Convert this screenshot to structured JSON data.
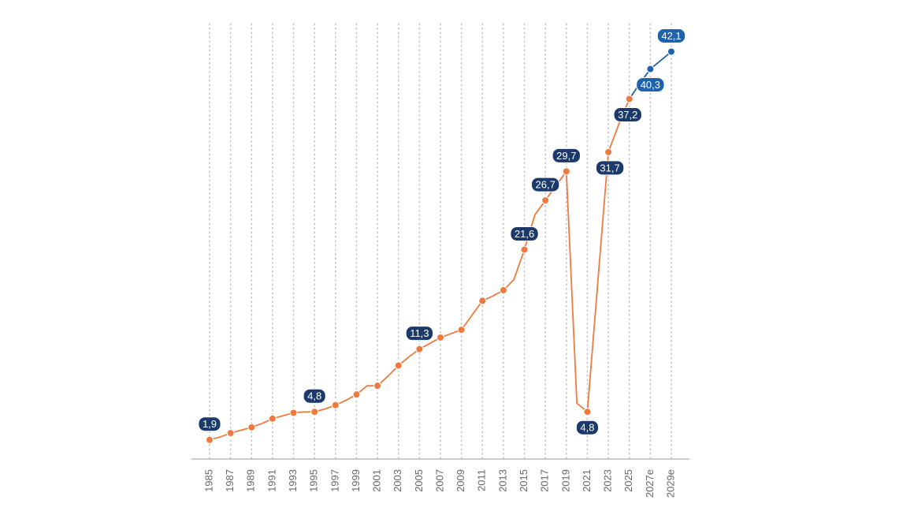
{
  "chart_data": {
    "type": "line",
    "categories": [
      "1985",
      null,
      "1987",
      null,
      "1989",
      null,
      "1991",
      null,
      "1993",
      null,
      "1995",
      null,
      "1997",
      null,
      "1999",
      null,
      "2001",
      null,
      "2003",
      null,
      "2005",
      null,
      "2007",
      null,
      "2009",
      null,
      "2011",
      null,
      "2013",
      null,
      "2015",
      null,
      "2017",
      null,
      "2019",
      null,
      "2021",
      null,
      "2023",
      null,
      "2025",
      null,
      "2027e",
      null,
      "2029e"
    ],
    "series": [
      {
        "color": "#f07a3e",
        "label_color": "#1b3a6b",
        "values": [
          1.9,
          2.2,
          2.6,
          2.9,
          3.2,
          3.6,
          4.1,
          4.4,
          4.7,
          4.8,
          4.8,
          5.1,
          5.5,
          6.0,
          6.6,
          7.5,
          7.5,
          8.5,
          9.6,
          10.5,
          11.3,
          11.9,
          12.5,
          12.9,
          13.3,
          14.8,
          16.3,
          16.8,
          17.4,
          18.5,
          21.6,
          25.2,
          26.7,
          28.2,
          29.7,
          5.7,
          4.8,
          18.3,
          31.7,
          34.6,
          37.2,
          null,
          null,
          null,
          null
        ],
        "value_labels": [
          "1,9",
          null,
          null,
          null,
          null,
          null,
          null,
          null,
          null,
          null,
          "4,8",
          null,
          null,
          null,
          null,
          null,
          null,
          null,
          null,
          null,
          "11,3",
          null,
          null,
          null,
          null,
          null,
          null,
          null,
          null,
          null,
          "21,6",
          null,
          "26,7",
          null,
          "29,7",
          null,
          "4,8",
          null,
          "31,7",
          null,
          "37,2",
          null,
          null,
          null,
          null
        ]
      },
      {
        "color": "#1f63ad",
        "label_color": "#1f63ad",
        "values": [
          null,
          null,
          null,
          null,
          null,
          null,
          null,
          null,
          null,
          null,
          null,
          null,
          null,
          null,
          null,
          null,
          null,
          null,
          null,
          null,
          null,
          null,
          null,
          null,
          null,
          null,
          null,
          null,
          null,
          null,
          null,
          null,
          null,
          null,
          null,
          null,
          null,
          null,
          null,
          null,
          37.2,
          38.8,
          40.3,
          41.2,
          42.1
        ],
        "value_labels": [
          null,
          null,
          null,
          null,
          null,
          null,
          null,
          null,
          null,
          null,
          null,
          null,
          null,
          null,
          null,
          null,
          null,
          null,
          null,
          null,
          null,
          null,
          null,
          null,
          null,
          null,
          null,
          null,
          null,
          null,
          null,
          null,
          null,
          null,
          null,
          null,
          null,
          null,
          null,
          null,
          null,
          null,
          "40,3",
          null,
          "42,1"
        ]
      }
    ],
    "ylim": [
      0,
      45
    ],
    "grid": true
  }
}
